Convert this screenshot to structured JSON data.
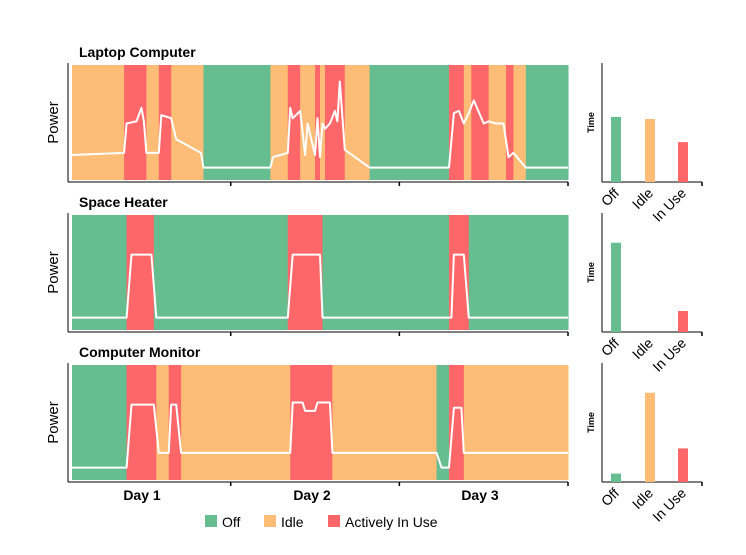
{
  "chart_data": {
    "type": "area",
    "colors": {
      "Off": "#66bd8f",
      "Idle": "#fdbd77",
      "Actively In Use": "#fe6769",
      "power_line": "#ffffff"
    },
    "legend": {
      "placement": "bottom",
      "entries": [
        "Off",
        "Idle",
        "Actively In Use"
      ]
    },
    "x_axis": {
      "tick_labels": [
        "Day 1",
        "Day 2",
        "Day 3"
      ],
      "range": [
        0,
        1
      ]
    },
    "bar_axis_label": "Time",
    "bar_categories": [
      "Off",
      "Idle",
      "In Use"
    ],
    "panels": [
      {
        "title": "Laptop Computer",
        "ylabel": "Power",
        "segments": [
          {
            "state": "Idle",
            "start": 0.0,
            "end": 0.105
          },
          {
            "state": "Actively In Use",
            "start": 0.105,
            "end": 0.15
          },
          {
            "state": "Idle",
            "start": 0.15,
            "end": 0.175
          },
          {
            "state": "Actively In Use",
            "start": 0.175,
            "end": 0.2
          },
          {
            "state": "Idle",
            "start": 0.2,
            "end": 0.265
          },
          {
            "state": "Off",
            "start": 0.265,
            "end": 0.4
          },
          {
            "state": "Idle",
            "start": 0.4,
            "end": 0.435
          },
          {
            "state": "Actively In Use",
            "start": 0.435,
            "end": 0.46
          },
          {
            "state": "Idle",
            "start": 0.46,
            "end": 0.49
          },
          {
            "state": "Actively In Use",
            "start": 0.49,
            "end": 0.5
          },
          {
            "state": "Idle",
            "start": 0.5,
            "end": 0.51
          },
          {
            "state": "Actively In Use",
            "start": 0.51,
            "end": 0.55
          },
          {
            "state": "Idle",
            "start": 0.55,
            "end": 0.6
          },
          {
            "state": "Off",
            "start": 0.6,
            "end": 0.76
          },
          {
            "state": "Actively In Use",
            "start": 0.76,
            "end": 0.79
          },
          {
            "state": "Idle",
            "start": 0.79,
            "end": 0.805
          },
          {
            "state": "Actively In Use",
            "start": 0.805,
            "end": 0.84
          },
          {
            "state": "Idle",
            "start": 0.84,
            "end": 0.875
          },
          {
            "state": "Actively In Use",
            "start": 0.875,
            "end": 0.89
          },
          {
            "state": "Idle",
            "start": 0.89,
            "end": 0.915
          },
          {
            "state": "Off",
            "start": 0.915,
            "end": 1.0
          }
        ],
        "power": [
          [
            0,
            0.2
          ],
          [
            0.105,
            0.22
          ],
          [
            0.11,
            0.5
          ],
          [
            0.13,
            0.52
          ],
          [
            0.14,
            0.65
          ],
          [
            0.145,
            0.52
          ],
          [
            0.15,
            0.22
          ],
          [
            0.175,
            0.22
          ],
          [
            0.18,
            0.58
          ],
          [
            0.2,
            0.55
          ],
          [
            0.21,
            0.35
          ],
          [
            0.26,
            0.22
          ],
          [
            0.265,
            0.08
          ],
          [
            0.4,
            0.08
          ],
          [
            0.405,
            0.18
          ],
          [
            0.435,
            0.22
          ],
          [
            0.44,
            0.65
          ],
          [
            0.445,
            0.55
          ],
          [
            0.46,
            0.62
          ],
          [
            0.47,
            0.2
          ],
          [
            0.475,
            0.5
          ],
          [
            0.49,
            0.2
          ],
          [
            0.495,
            0.55
          ],
          [
            0.5,
            0.18
          ],
          [
            0.505,
            0.5
          ],
          [
            0.51,
            0.45
          ],
          [
            0.52,
            0.5
          ],
          [
            0.53,
            0.62
          ],
          [
            0.535,
            0.52
          ],
          [
            0.54,
            0.9
          ],
          [
            0.55,
            0.25
          ],
          [
            0.6,
            0.08
          ],
          [
            0.76,
            0.08
          ],
          [
            0.77,
            0.6
          ],
          [
            0.78,
            0.62
          ],
          [
            0.79,
            0.5
          ],
          [
            0.8,
            0.6
          ],
          [
            0.81,
            0.72
          ],
          [
            0.83,
            0.5
          ],
          [
            0.84,
            0.52
          ],
          [
            0.855,
            0.5
          ],
          [
            0.87,
            0.5
          ],
          [
            0.88,
            0.18
          ],
          [
            0.89,
            0.22
          ],
          [
            0.915,
            0.08
          ],
          [
            1.0,
            0.08
          ]
        ],
        "time_bars": {
          "Off": 0.62,
          "Idle": 0.6,
          "In Use": 0.38
        }
      },
      {
        "title": "Space Heater",
        "ylabel": "Power",
        "segments": [
          {
            "state": "Off",
            "start": 0.0,
            "end": 0.11
          },
          {
            "state": "Actively In Use",
            "start": 0.11,
            "end": 0.165
          },
          {
            "state": "Off",
            "start": 0.165,
            "end": 0.435
          },
          {
            "state": "Actively In Use",
            "start": 0.435,
            "end": 0.505
          },
          {
            "state": "Off",
            "start": 0.505,
            "end": 0.76
          },
          {
            "state": "Actively In Use",
            "start": 0.76,
            "end": 0.8
          },
          {
            "state": "Off",
            "start": 0.8,
            "end": 1.0
          }
        ],
        "power": [
          [
            0,
            0.08
          ],
          [
            0.11,
            0.08
          ],
          [
            0.12,
            0.68
          ],
          [
            0.16,
            0.68
          ],
          [
            0.17,
            0.08
          ],
          [
            0.435,
            0.08
          ],
          [
            0.445,
            0.68
          ],
          [
            0.5,
            0.68
          ],
          [
            0.505,
            0.08
          ],
          [
            0.765,
            0.08
          ],
          [
            0.77,
            0.68
          ],
          [
            0.79,
            0.68
          ],
          [
            0.8,
            0.08
          ],
          [
            1.0,
            0.08
          ]
        ],
        "time_bars": {
          "Off": 0.85,
          "Idle": 0.0,
          "In Use": 0.2
        }
      },
      {
        "title": "Computer Monitor",
        "ylabel": "Power",
        "segments": [
          {
            "state": "Off",
            "start": 0.0,
            "end": 0.11
          },
          {
            "state": "Actively In Use",
            "start": 0.11,
            "end": 0.17
          },
          {
            "state": "Idle",
            "start": 0.17,
            "end": 0.195
          },
          {
            "state": "Actively In Use",
            "start": 0.195,
            "end": 0.22
          },
          {
            "state": "Idle",
            "start": 0.22,
            "end": 0.44
          },
          {
            "state": "Actively In Use",
            "start": 0.44,
            "end": 0.525
          },
          {
            "state": "Idle",
            "start": 0.525,
            "end": 0.735
          },
          {
            "state": "Off",
            "start": 0.735,
            "end": 0.76
          },
          {
            "state": "Actively In Use",
            "start": 0.76,
            "end": 0.79
          },
          {
            "state": "Idle",
            "start": 0.79,
            "end": 1.0
          }
        ],
        "power": [
          [
            0,
            0.08
          ],
          [
            0.11,
            0.08
          ],
          [
            0.12,
            0.68
          ],
          [
            0.165,
            0.68
          ],
          [
            0.175,
            0.22
          ],
          [
            0.195,
            0.22
          ],
          [
            0.2,
            0.68
          ],
          [
            0.21,
            0.68
          ],
          [
            0.22,
            0.22
          ],
          [
            0.44,
            0.22
          ],
          [
            0.445,
            0.7
          ],
          [
            0.465,
            0.7
          ],
          [
            0.47,
            0.62
          ],
          [
            0.49,
            0.62
          ],
          [
            0.495,
            0.7
          ],
          [
            0.52,
            0.7
          ],
          [
            0.525,
            0.22
          ],
          [
            0.735,
            0.22
          ],
          [
            0.745,
            0.08
          ],
          [
            0.76,
            0.08
          ],
          [
            0.77,
            0.65
          ],
          [
            0.785,
            0.65
          ],
          [
            0.79,
            0.22
          ],
          [
            1.0,
            0.22
          ]
        ],
        "time_bars": {
          "Off": 0.08,
          "Idle": 0.85,
          "In Use": 0.32
        }
      }
    ]
  }
}
